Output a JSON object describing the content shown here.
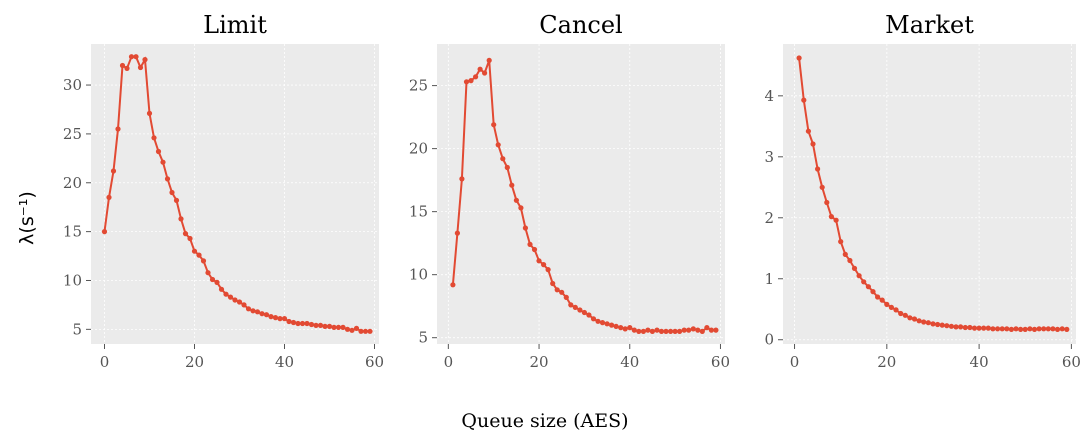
{
  "figure": {
    "xlabel": "Queue size (AES)",
    "ylabel": "λ(s⁻¹)",
    "series_color": "#e24a33",
    "panel_color": "#ebebeb"
  },
  "chart_data": [
    {
      "type": "line",
      "title": "Limit",
      "grid": true,
      "xlim": [
        -3,
        61
      ],
      "ylim": [
        3.5,
        34.2
      ],
      "xticks": [
        0,
        20,
        40,
        60
      ],
      "yticks": [
        5,
        10,
        15,
        20,
        25,
        30
      ],
      "x": [
        0,
        1,
        2,
        3,
        4,
        5,
        6,
        7,
        8,
        9,
        10,
        11,
        12,
        13,
        14,
        15,
        16,
        17,
        18,
        19,
        20,
        21,
        22,
        23,
        24,
        25,
        26,
        27,
        28,
        29,
        30,
        31,
        32,
        33,
        34,
        35,
        36,
        37,
        38,
        39,
        40,
        41,
        42,
        43,
        44,
        45,
        46,
        47,
        48,
        49,
        50,
        51,
        52,
        53,
        54,
        55,
        56,
        57,
        58,
        59
      ],
      "y": [
        15.0,
        18.5,
        21.2,
        25.5,
        32.0,
        31.7,
        32.9,
        32.9,
        31.8,
        32.6,
        27.1,
        24.6,
        23.2,
        22.1,
        20.4,
        19.0,
        18.2,
        16.3,
        14.8,
        14.3,
        13.0,
        12.6,
        12.0,
        10.8,
        10.1,
        9.8,
        9.1,
        8.6,
        8.3,
        8.0,
        7.8,
        7.5,
        7.1,
        6.9,
        6.8,
        6.6,
        6.5,
        6.3,
        6.2,
        6.1,
        6.1,
        5.8,
        5.7,
        5.6,
        5.6,
        5.6,
        5.5,
        5.4,
        5.4,
        5.3,
        5.3,
        5.2,
        5.2,
        5.2,
        5.0,
        4.9,
        5.1,
        4.8,
        4.8,
        4.8
      ]
    },
    {
      "type": "line",
      "title": "Cancel",
      "grid": true,
      "xlim": [
        -2.5,
        61
      ],
      "ylim": [
        4.5,
        28.3
      ],
      "xticks": [
        0,
        20,
        40,
        60
      ],
      "yticks": [
        5,
        10,
        15,
        20,
        25
      ],
      "x": [
        1,
        2,
        3,
        4,
        5,
        6,
        7,
        8,
        9,
        10,
        11,
        12,
        13,
        14,
        15,
        16,
        17,
        18,
        19,
        20,
        21,
        22,
        23,
        24,
        25,
        26,
        27,
        28,
        29,
        30,
        31,
        32,
        33,
        34,
        35,
        36,
        37,
        38,
        39,
        40,
        41,
        42,
        43,
        44,
        45,
        46,
        47,
        48,
        49,
        50,
        51,
        52,
        53,
        54,
        55,
        56,
        57,
        58,
        59
      ],
      "y": [
        9.2,
        13.3,
        17.6,
        25.3,
        25.4,
        25.7,
        26.3,
        26.0,
        27.0,
        21.9,
        20.3,
        19.2,
        18.5,
        17.1,
        15.9,
        15.3,
        13.7,
        12.4,
        12.0,
        11.1,
        10.8,
        10.4,
        9.3,
        8.8,
        8.6,
        8.2,
        7.6,
        7.4,
        7.2,
        7.0,
        6.8,
        6.5,
        6.3,
        6.2,
        6.1,
        6.0,
        5.9,
        5.8,
        5.7,
        5.8,
        5.6,
        5.5,
        5.5,
        5.6,
        5.5,
        5.6,
        5.5,
        5.5,
        5.5,
        5.5,
        5.5,
        5.6,
        5.6,
        5.7,
        5.6,
        5.5,
        5.8,
        5.6,
        5.6
      ]
    },
    {
      "type": "line",
      "title": "Market",
      "grid": true,
      "xlim": [
        -2.5,
        61
      ],
      "ylim": [
        -0.07,
        4.85
      ],
      "xticks": [
        0,
        20,
        40,
        60
      ],
      "yticks": [
        0,
        1,
        2,
        3,
        4
      ],
      "x": [
        1,
        2,
        3,
        4,
        5,
        6,
        7,
        8,
        9,
        10,
        11,
        12,
        13,
        14,
        15,
        16,
        17,
        18,
        19,
        20,
        21,
        22,
        23,
        24,
        25,
        26,
        27,
        28,
        29,
        30,
        31,
        32,
        33,
        34,
        35,
        36,
        37,
        38,
        39,
        40,
        41,
        42,
        43,
        44,
        45,
        46,
        47,
        48,
        49,
        50,
        51,
        52,
        53,
        54,
        55,
        56,
        57,
        58,
        59
      ],
      "y": [
        4.62,
        3.93,
        3.42,
        3.21,
        2.8,
        2.5,
        2.25,
        2.02,
        1.96,
        1.61,
        1.4,
        1.3,
        1.17,
        1.05,
        0.95,
        0.87,
        0.79,
        0.7,
        0.65,
        0.58,
        0.53,
        0.49,
        0.43,
        0.4,
        0.36,
        0.34,
        0.31,
        0.29,
        0.28,
        0.26,
        0.25,
        0.24,
        0.23,
        0.22,
        0.21,
        0.21,
        0.2,
        0.2,
        0.19,
        0.19,
        0.19,
        0.19,
        0.18,
        0.18,
        0.18,
        0.18,
        0.17,
        0.18,
        0.17,
        0.17,
        0.18,
        0.17,
        0.18,
        0.18,
        0.18,
        0.18,
        0.17,
        0.18,
        0.17
      ]
    }
  ]
}
